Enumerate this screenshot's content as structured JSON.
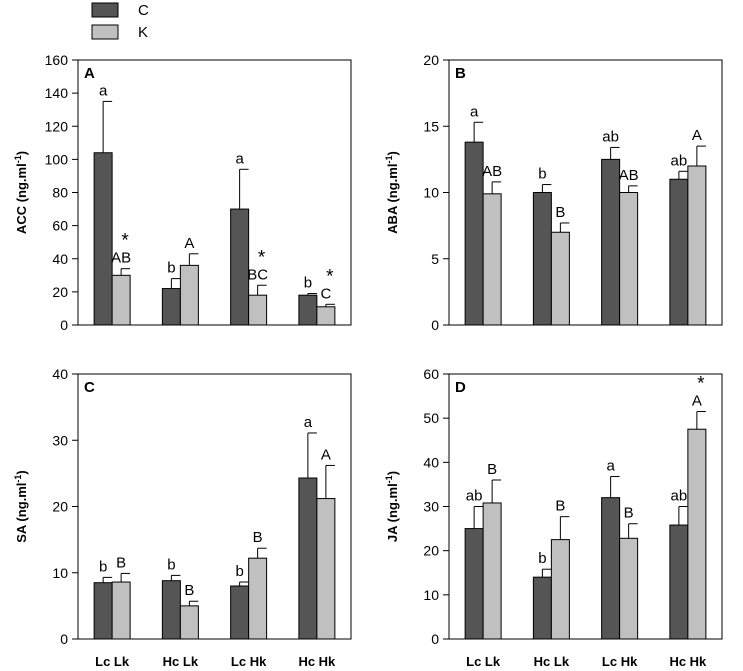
{
  "legend": [
    {
      "label": "C",
      "color": "#555555"
    },
    {
      "label": "K",
      "color": "#c0c0c0"
    }
  ],
  "chart_data": [
    {
      "type": "bar",
      "panel": "A",
      "ylabel": "ACC (ng.ml",
      "ylabel_sup": "-1",
      "ylabel_suffix": ")",
      "ylim": [
        0,
        160
      ],
      "yticks": [
        0,
        20,
        40,
        60,
        80,
        100,
        120,
        140,
        160
      ],
      "categories": [
        "Lc Lk",
        "Hc Lk",
        "Lc Hk",
        "Hc Hk"
      ],
      "show_xticks": false,
      "series": [
        {
          "name": "C",
          "values": [
            104,
            22,
            70,
            18
          ],
          "errors": [
            31,
            6,
            24,
            1
          ],
          "letters": [
            "a",
            "b",
            "a",
            "b"
          ],
          "stars": [
            "",
            "",
            "",
            ""
          ]
        },
        {
          "name": "K",
          "values": [
            30,
            36,
            18,
            11
          ],
          "errors": [
            4,
            7,
            6,
            1.5
          ],
          "letters": [
            "AB",
            "A",
            "BC",
            "C"
          ],
          "stars": [
            "*",
            "",
            "*",
            "*"
          ]
        }
      ]
    },
    {
      "type": "bar",
      "panel": "B",
      "ylabel": "ABA (ng.ml",
      "ylabel_sup": "-1",
      "ylabel_suffix": ")",
      "ylim": [
        0,
        20
      ],
      "yticks": [
        0,
        5,
        10,
        15,
        20
      ],
      "categories": [
        "Lc Lk",
        "Hc Lk",
        "Lc Hk",
        "Hc Hk"
      ],
      "show_xticks": false,
      "series": [
        {
          "name": "C",
          "values": [
            13.8,
            10.0,
            12.5,
            11.0
          ],
          "errors": [
            1.5,
            0.6,
            0.9,
            0.6
          ],
          "letters": [
            "a",
            "b",
            "ab",
            "ab"
          ],
          "stars": [
            "",
            "",
            "",
            ""
          ]
        },
        {
          "name": "K",
          "values": [
            9.9,
            7.0,
            10.0,
            12.0
          ],
          "errors": [
            0.9,
            0.7,
            0.5,
            1.5
          ],
          "letters": [
            "AB",
            "B",
            "AB",
            "A"
          ],
          "stars": [
            "",
            "",
            "",
            ""
          ]
        }
      ]
    },
    {
      "type": "bar",
      "panel": "C",
      "ylabel": "SA (ng.ml",
      "ylabel_sup": "-1",
      "ylabel_suffix": ")",
      "ylim": [
        0,
        40
      ],
      "yticks": [
        0,
        10,
        20,
        30,
        40
      ],
      "categories": [
        "Lc Lk",
        "Hc Lk",
        "Lc Hk",
        "Hc Hk"
      ],
      "show_xticks": true,
      "series": [
        {
          "name": "C",
          "values": [
            8.5,
            8.8,
            8.0,
            24.3
          ],
          "errors": [
            0.8,
            0.8,
            0.6,
            6.8
          ],
          "letters": [
            "b",
            "b",
            "b",
            "a"
          ],
          "stars": [
            "",
            "",
            "",
            ""
          ]
        },
        {
          "name": "K",
          "values": [
            8.6,
            5.0,
            12.2,
            21.2
          ],
          "errors": [
            1.3,
            0.7,
            1.5,
            5.0
          ],
          "letters": [
            "B",
            "B",
            "B",
            "A"
          ],
          "stars": [
            "",
            "",
            "",
            ""
          ]
        }
      ]
    },
    {
      "type": "bar",
      "panel": "D",
      "ylabel": "JA (ng.ml",
      "ylabel_sup": "-1",
      "ylabel_suffix": ")",
      "ylim": [
        0,
        60
      ],
      "yticks": [
        0,
        10,
        20,
        30,
        40,
        50,
        60
      ],
      "categories": [
        "Lc Lk",
        "Hc Lk",
        "Lc Hk",
        "Hc Hk"
      ],
      "show_xticks": true,
      "series": [
        {
          "name": "C",
          "values": [
            25.0,
            14.0,
            32.0,
            25.8
          ],
          "errors": [
            5.0,
            1.8,
            4.8,
            4.2
          ],
          "letters": [
            "ab",
            "b",
            "a",
            "ab"
          ],
          "stars": [
            "",
            "",
            "",
            ""
          ]
        },
        {
          "name": "K",
          "values": [
            30.8,
            22.5,
            22.8,
            47.5
          ],
          "errors": [
            5.2,
            5.2,
            3.3,
            4.0
          ],
          "letters": [
            "B",
            "B",
            "B",
            "A"
          ],
          "stars": [
            "",
            "",
            "",
            "*"
          ]
        }
      ]
    }
  ]
}
